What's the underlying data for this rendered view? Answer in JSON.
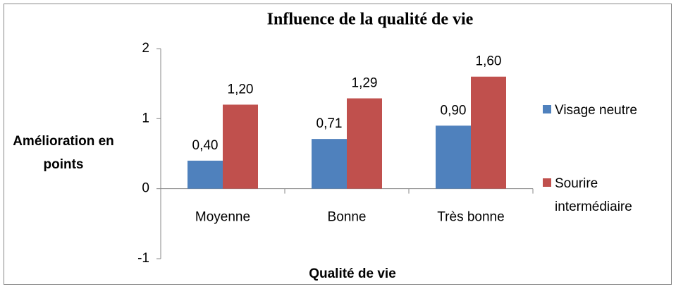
{
  "chart_data": {
    "type": "bar",
    "title": "Influence de la qualité de vie",
    "x_label": "Qualité de vie",
    "y_label": "Amélioration en points",
    "categories": [
      "Moyenne",
      "Bonne",
      "Très bonne"
    ],
    "series": [
      {
        "name": "Visage neutre",
        "color": "#4f81bd",
        "values": [
          0.4,
          0.71,
          0.9
        ],
        "value_labels": [
          "0,40",
          "0,71",
          "0,90"
        ]
      },
      {
        "name": "Sourire intermédiaire",
        "color": "#c0504d",
        "values": [
          1.2,
          1.29,
          1.6
        ],
        "value_labels": [
          "1,20",
          "1,29",
          "1,60"
        ]
      }
    ],
    "ylim": [
      -1,
      2
    ],
    "yticks": [
      -1,
      0,
      1,
      2
    ],
    "grid": false,
    "legend": "right"
  }
}
